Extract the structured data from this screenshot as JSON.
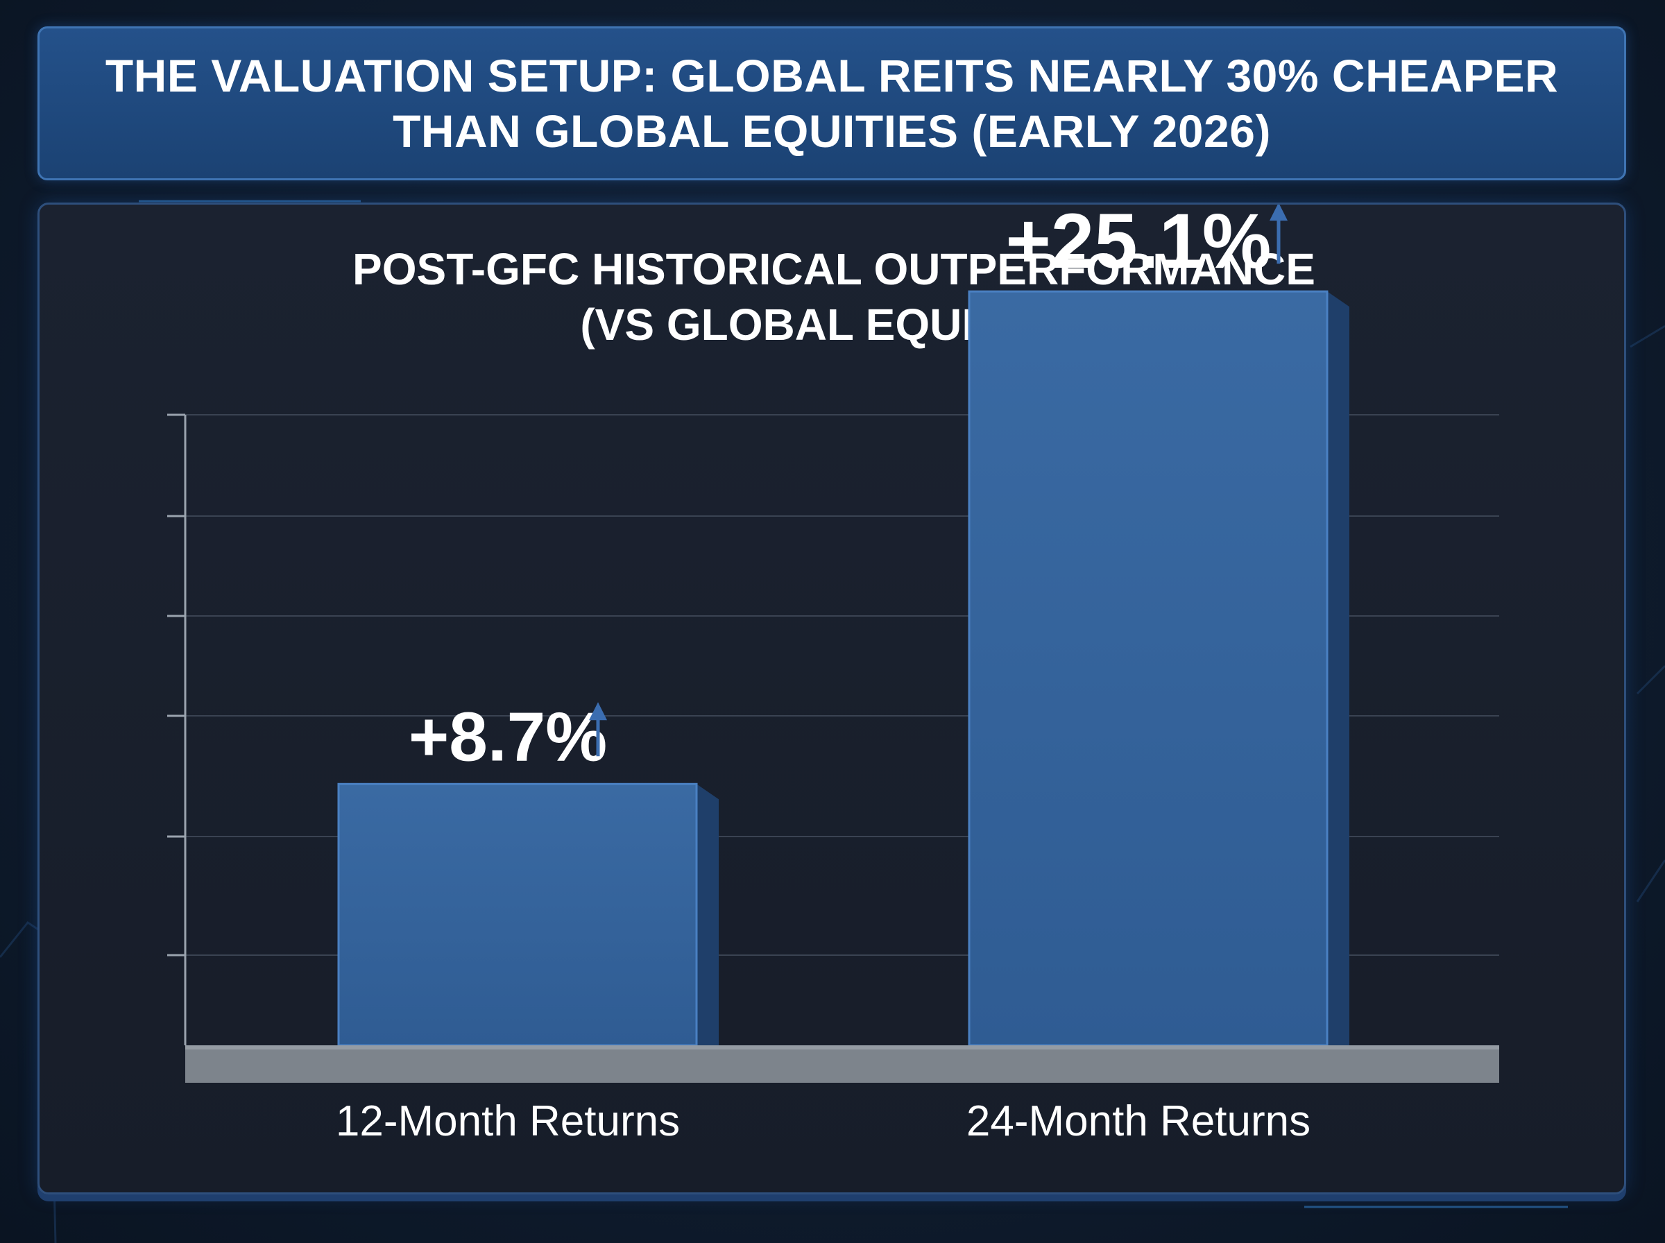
{
  "header": {
    "title": "THE VALUATION SETUP: GLOBAL REITS NEARLY 30% CHEAPER THAN GLOBAL EQUITIES (EARLY 2026)"
  },
  "chart_data": {
    "type": "bar",
    "title_line1": "POST-GFC HISTORICAL OUTPERFORMANCE",
    "title_line2": "(VS GLOBAL EQUITIES)",
    "categories": [
      "12-Month Returns",
      "24-Month Returns"
    ],
    "values": [
      8.7,
      25.1
    ],
    "value_labels": [
      "+8.7%",
      "+25.1%"
    ],
    "unit": "%",
    "ylim": [
      0,
      30
    ],
    "grid": true,
    "bar_color": "#35649c",
    "arrow_icon": "up-arrow-icon"
  }
}
